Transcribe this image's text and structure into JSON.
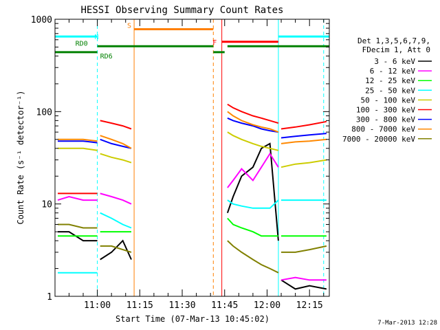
{
  "chart_data": {
    "type": "line",
    "title": "HESSI Observing Summary Count Rates",
    "xlabel": "Start Time (07-Mar-13 10:45:02)",
    "ylabel": "Count Rate (s⁻¹ detector⁻¹)",
    "y_scale": "log",
    "ylim": [
      1,
      1000
    ],
    "xlim": [
      "10:45:02",
      "12:22:00"
    ],
    "grid": false,
    "x_ticks": [
      "11:00",
      "11:15",
      "11:30",
      "11:45",
      "12:00",
      "12:15"
    ],
    "y_ticks": [
      "1",
      "10",
      "100",
      "1000"
    ],
    "legend": {
      "placement": "right",
      "header_line1": "Det 1,3,5,6,7,9,",
      "header_line2": "FDecim 1, Att 0"
    },
    "series": [
      {
        "name": "3 - 6 keV",
        "color": "#000000",
        "segments": [
          {
            "x": [
              "10:46",
              "10:50",
              "10:55",
              "11:00"
            ],
            "y": [
              5,
              5,
              4,
              4
            ]
          },
          {
            "x": [
              "11:01",
              "11:05",
              "11:09",
              "11:12"
            ],
            "y": [
              2.5,
              3,
              4,
              2.5
            ]
          },
          {
            "x": [
              "11:46",
              "11:48",
              "11:51",
              "11:55",
              "11:58",
              "12:01",
              "12:04"
            ],
            "y": [
              8,
              12,
              20,
              25,
              40,
              45,
              4
            ]
          },
          {
            "x": [
              "12:05",
              "12:10",
              "12:15",
              "12:21"
            ],
            "y": [
              1.5,
              1.2,
              1.3,
              1.2
            ]
          }
        ]
      },
      {
        "name": "6 - 12 keV",
        "color": "#ff00ff",
        "segments": [
          {
            "x": [
              "10:46",
              "10:50",
              "10:55",
              "11:00"
            ],
            "y": [
              11,
              12,
              11,
              11
            ]
          },
          {
            "x": [
              "11:01",
              "11:05",
              "11:09",
              "11:12"
            ],
            "y": [
              13,
              12,
              11,
              10
            ]
          },
          {
            "x": [
              "11:46",
              "11:48",
              "11:51",
              "11:55",
              "11:58",
              "12:01",
              "12:04"
            ],
            "y": [
              15,
              18,
              24,
              18,
              25,
              35,
              25
            ]
          },
          {
            "x": [
              "12:05",
              "12:10",
              "12:15",
              "12:21"
            ],
            "y": [
              1.5,
              1.6,
              1.5,
              1.5
            ]
          }
        ]
      },
      {
        "name": "12 - 25 keV",
        "color": "#00ff00",
        "segments": [
          {
            "x": [
              "10:46",
              "10:50",
              "10:55",
              "11:00"
            ],
            "y": [
              4.5,
              4.5,
              4.5,
              4.5
            ]
          },
          {
            "x": [
              "11:01",
              "11:05",
              "11:09",
              "11:12"
            ],
            "y": [
              5,
              5,
              5,
              5
            ]
          },
          {
            "x": [
              "11:46",
              "11:48",
              "11:51",
              "11:55",
              "11:58",
              "12:01",
              "12:04"
            ],
            "y": [
              7,
              6,
              5.5,
              5,
              4.5,
              4.5,
              4.5
            ]
          },
          {
            "x": [
              "12:05",
              "12:10",
              "12:15",
              "12:21"
            ],
            "y": [
              4.5,
              4.5,
              4.5,
              4.5
            ]
          }
        ]
      },
      {
        "name": "25 - 50 keV",
        "color": "#00ffff",
        "segments": [
          {
            "x": [
              "10:46",
              "10:50",
              "10:55",
              "11:00"
            ],
            "y": [
              1.8,
              1.8,
              1.8,
              1.8
            ]
          },
          {
            "x": [
              "11:01",
              "11:05",
              "11:09",
              "11:12"
            ],
            "y": [
              8,
              7,
              6,
              5.5
            ]
          },
          {
            "x": [
              "11:46",
              "11:48",
              "11:51",
              "11:55",
              "11:58",
              "12:01",
              "12:04"
            ],
            "y": [
              11,
              10,
              9.5,
              9,
              9,
              9,
              11
            ]
          },
          {
            "x": [
              "12:05",
              "12:10",
              "12:15",
              "12:21"
            ],
            "y": [
              11,
              11,
              11,
              11
            ]
          }
        ]
      },
      {
        "name": "50 - 100 keV",
        "color": "#cccc00",
        "segments": [
          {
            "x": [
              "10:46",
              "10:50",
              "10:55",
              "11:00"
            ],
            "y": [
              40,
              40,
              40,
              38
            ]
          },
          {
            "x": [
              "11:01",
              "11:05",
              "11:09",
              "11:12"
            ],
            "y": [
              35,
              32,
              30,
              28
            ]
          },
          {
            "x": [
              "11:46",
              "11:48",
              "11:51",
              "11:55",
              "11:58",
              "12:01",
              "12:04"
            ],
            "y": [
              60,
              55,
              50,
              45,
              42,
              40,
              38
            ]
          },
          {
            "x": [
              "12:05",
              "12:10",
              "12:15",
              "12:21"
            ],
            "y": [
              25,
              27,
              28,
              30
            ]
          }
        ]
      },
      {
        "name": "100 - 300 keV",
        "color": "#ff0000",
        "segments": [
          {
            "x": [
              "10:46",
              "10:50",
              "10:55",
              "11:00"
            ],
            "y": [
              13,
              13,
              13,
              13
            ]
          },
          {
            "x": [
              "11:01",
              "11:05",
              "11:09",
              "11:12"
            ],
            "y": [
              80,
              75,
              70,
              65
            ]
          },
          {
            "x": [
              "11:46",
              "11:48",
              "11:51",
              "11:55",
              "11:58",
              "12:01",
              "12:04"
            ],
            "y": [
              120,
              110,
              100,
              90,
              85,
              80,
              75
            ]
          },
          {
            "x": [
              "12:05",
              "12:10",
              "12:15",
              "12:21"
            ],
            "y": [
              65,
              68,
              72,
              78
            ]
          }
        ]
      },
      {
        "name": "300 - 800 keV",
        "color": "#0000ff",
        "segments": [
          {
            "x": [
              "10:46",
              "10:50",
              "10:55",
              "11:00"
            ],
            "y": [
              48,
              48,
              48,
              46
            ]
          },
          {
            "x": [
              "11:01",
              "11:05",
              "11:09",
              "11:12"
            ],
            "y": [
              50,
              45,
              42,
              40
            ]
          },
          {
            "x": [
              "11:46",
              "11:48",
              "11:51",
              "11:55",
              "11:58",
              "12:01",
              "12:04"
            ],
            "y": [
              85,
              80,
              75,
              70,
              65,
              62,
              60
            ]
          },
          {
            "x": [
              "12:05",
              "12:10",
              "12:15",
              "12:21"
            ],
            "y": [
              52,
              54,
              56,
              58
            ]
          }
        ]
      },
      {
        "name": "800 - 7000 keV",
        "color": "#ff8800",
        "segments": [
          {
            "x": [
              "10:46",
              "10:50",
              "10:55",
              "11:00"
            ],
            "y": [
              50,
              50,
              50,
              48
            ]
          },
          {
            "x": [
              "11:01",
              "11:05",
              "11:09",
              "11:12"
            ],
            "y": [
              55,
              50,
              45,
              40
            ]
          },
          {
            "x": [
              "11:46",
              "11:48",
              "11:51",
              "11:55",
              "11:58",
              "12:01",
              "12:04"
            ],
            "y": [
              100,
              90,
              80,
              72,
              68,
              65,
              60
            ]
          },
          {
            "x": [
              "12:05",
              "12:10",
              "12:15",
              "12:21"
            ],
            "y": [
              45,
              47,
              48,
              50
            ]
          }
        ]
      },
      {
        "name": "7000 - 20000 keV",
        "color": "#808000",
        "segments": [
          {
            "x": [
              "10:46",
              "10:50",
              "10:55",
              "11:00"
            ],
            "y": [
              6,
              6,
              5.5,
              5.5
            ]
          },
          {
            "x": [
              "11:01",
              "11:05",
              "11:09",
              "11:12"
            ],
            "y": [
              3.5,
              3.5,
              3.2,
              3
            ]
          },
          {
            "x": [
              "11:46",
              "11:48",
              "11:51",
              "11:55",
              "11:58",
              "12:01",
              "12:04"
            ],
            "y": [
              4,
              3.5,
              3,
              2.5,
              2.2,
              2,
              1.8
            ]
          },
          {
            "x": [
              "12:05",
              "12:10",
              "12:15",
              "12:21"
            ],
            "y": [
              3,
              3,
              3.2,
              3.5
            ]
          }
        ]
      }
    ],
    "flag_bars": [
      {
        "label": "N",
        "color": "#00ffff",
        "level": 650,
        "spans": [
          [
            "10:45:02",
            "11:00"
          ],
          [
            "12:04",
            "12:22"
          ]
        ]
      },
      {
        "label": "S",
        "color": "#ff7f00",
        "level": 780,
        "spans": [
          [
            "11:13",
            "11:41"
          ]
        ]
      },
      {
        "label": "F",
        "color": "#ff0000",
        "level": 570,
        "spans": [
          [
            "11:44",
            "12:04"
          ]
        ]
      },
      {
        "label": "RD0",
        "color": "#008000",
        "level": 510,
        "spans": [
          [
            "11:00",
            "11:41"
          ],
          [
            "11:46",
            "12:22"
          ]
        ]
      },
      {
        "label": "RD6",
        "color": "#008000",
        "level": 440,
        "spans": [
          [
            "10:45:02",
            "11:00"
          ],
          [
            "11:41",
            "11:45"
          ]
        ]
      }
    ],
    "event_lines": [
      {
        "time": "10:45:02",
        "color": "#00ffff",
        "style": "solid"
      },
      {
        "time": "11:00",
        "color": "#00ffff",
        "style": "dashed"
      },
      {
        "time": "11:13",
        "color": "#ff7f00",
        "style": "solid"
      },
      {
        "time": "11:41",
        "color": "#ff7f00",
        "style": "dashed"
      },
      {
        "time": "11:44",
        "color": "#ff0000",
        "style": "solid"
      },
      {
        "time": "12:04",
        "color": "#00ffff",
        "style": "solid"
      },
      {
        "time": "12:20",
        "color": "#00ffff",
        "style": "dashed"
      }
    ],
    "footer_date": "7-Mar-2013 12:28"
  }
}
